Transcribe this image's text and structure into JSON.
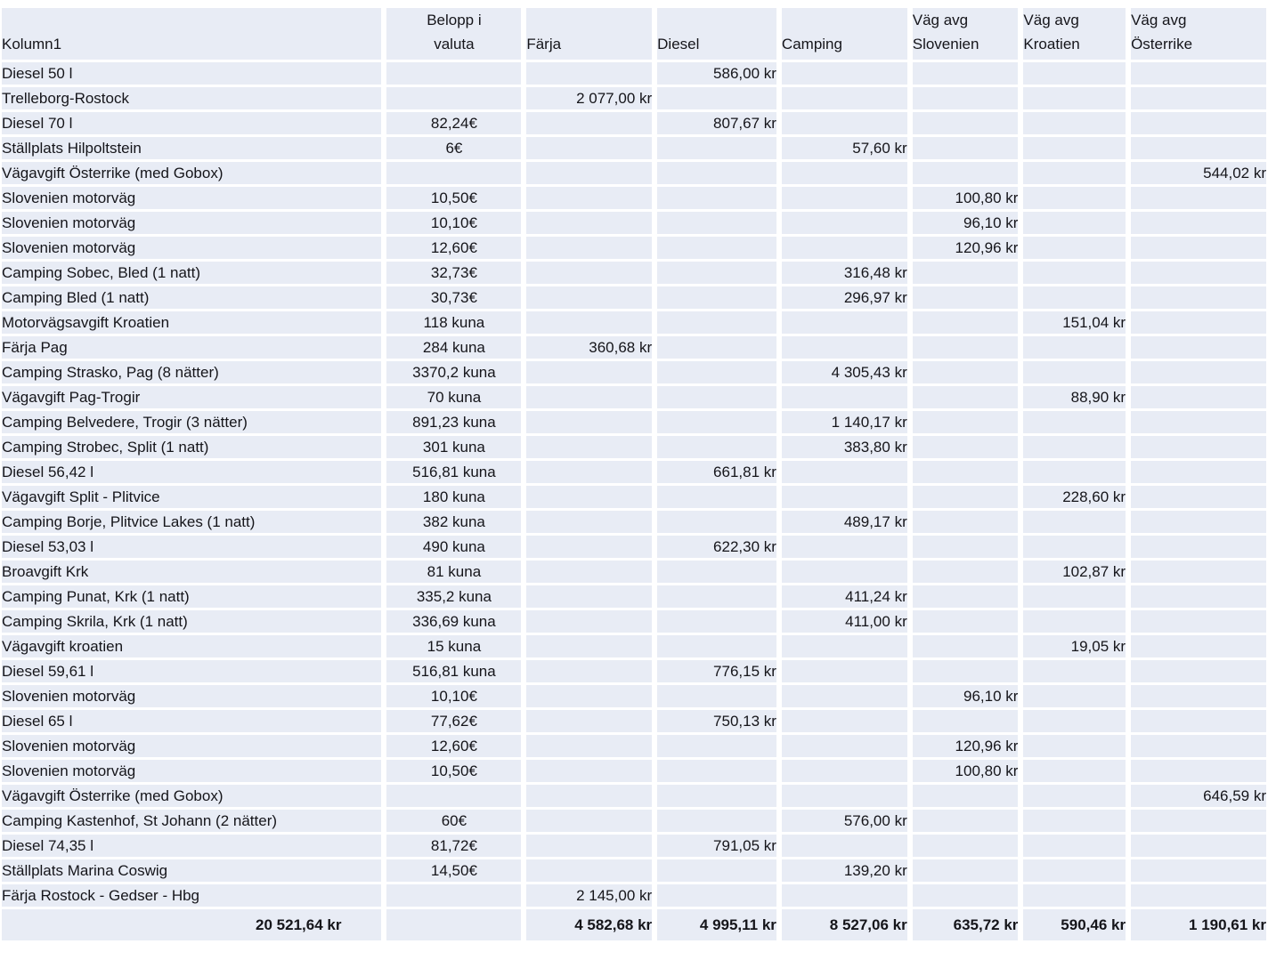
{
  "colors": {
    "cell_fill": "#e8ecf5",
    "gridline": "#ffffff",
    "text": "#15151a"
  },
  "table": {
    "columns": [
      {
        "key": "name",
        "label": "Kolumn1",
        "type": "label"
      },
      {
        "key": "valuta",
        "label": "Belopp i\nvaluta",
        "type": "center"
      },
      {
        "key": "farja",
        "label": "Färja",
        "type": "num"
      },
      {
        "key": "diesel",
        "label": "Diesel",
        "type": "num"
      },
      {
        "key": "camping",
        "label": "Camping",
        "type": "num"
      },
      {
        "key": "slovenien",
        "label": "Väg avg\nSlovenien",
        "type": "num"
      },
      {
        "key": "kroatien",
        "label": "Väg avg\nKroatien",
        "type": "num"
      },
      {
        "key": "osterrike",
        "label": "Väg avg\nÖsterrike",
        "type": "num"
      }
    ],
    "rows": [
      {
        "name": "Diesel 50 l",
        "diesel": "586,00 kr"
      },
      {
        "name": "Trelleborg-Rostock",
        "farja": "2 077,00 kr"
      },
      {
        "name": "Diesel 70 l",
        "valuta": "82,24€",
        "diesel": "807,67 kr"
      },
      {
        "name": "Ställplats Hilpoltstein",
        "valuta": "6€",
        "camping": "57,60 kr"
      },
      {
        "name": "Vägavgift Österrike (med Gobox)",
        "osterrike": "544,02 kr"
      },
      {
        "name": "Slovenien motorväg",
        "valuta": "10,50€",
        "slovenien": "100,80 kr"
      },
      {
        "name": "Slovenien motorväg",
        "valuta": "10,10€",
        "slovenien": "96,10 kr"
      },
      {
        "name": "Slovenien motorväg",
        "valuta": "12,60€",
        "slovenien": "120,96 kr"
      },
      {
        "name": "Camping Sobec, Bled (1 natt)",
        "valuta": "32,73€",
        "camping": "316,48 kr"
      },
      {
        "name": "Camping Bled (1 natt)",
        "valuta": "30,73€",
        "camping": "296,97 kr"
      },
      {
        "name": "Motorvägsavgift Kroatien",
        "valuta": "118 kuna",
        "kroatien": "151,04 kr"
      },
      {
        "name": "Färja Pag",
        "valuta": "284 kuna",
        "farja": "360,68 kr"
      },
      {
        "name": "Camping Strasko, Pag (8 nätter)",
        "valuta": "3370,2 kuna",
        "camping": "4 305,43 kr"
      },
      {
        "name": "Vägavgift Pag-Trogir",
        "valuta": "70 kuna",
        "kroatien": "88,90 kr"
      },
      {
        "name": "Camping Belvedere, Trogir (3 nätter)",
        "valuta": "891,23 kuna",
        "camping": "1 140,17 kr"
      },
      {
        "name": "Camping Strobec, Split (1 natt)",
        "valuta": "301 kuna",
        "camping": "383,80 kr"
      },
      {
        "name": "Diesel 56,42 l",
        "valuta": "516,81 kuna",
        "diesel": "661,81 kr"
      },
      {
        "name": "Vägavgift Split - Plitvice",
        "valuta": "180 kuna",
        "kroatien": "228,60 kr"
      },
      {
        "name": "Camping Borje, Plitvice Lakes (1 natt)",
        "valuta": "382 kuna",
        "camping": "489,17 kr"
      },
      {
        "name": "Diesel 53,03 l",
        "valuta": "490 kuna",
        "diesel": "622,30 kr"
      },
      {
        "name": "Broavgift Krk",
        "valuta": "81 kuna",
        "kroatien": "102,87 kr"
      },
      {
        "name": "Camping Punat, Krk (1 natt)",
        "valuta": "335,2 kuna",
        "camping": "411,24 kr"
      },
      {
        "name": "Camping Skrila, Krk (1 natt)",
        "valuta": "336,69 kuna",
        "camping": "411,00 kr"
      },
      {
        "name": "Vägavgift kroatien",
        "valuta": "15 kuna",
        "kroatien": "19,05 kr"
      },
      {
        "name": "Diesel 59,61 l",
        "valuta": "516,81 kuna",
        "diesel": "776,15 kr"
      },
      {
        "name": "Slovenien motorväg",
        "valuta": "10,10€",
        "slovenien": "96,10 kr"
      },
      {
        "name": "Diesel 65 l",
        "valuta": "77,62€",
        "diesel": "750,13 kr"
      },
      {
        "name": "Slovenien motorväg",
        "valuta": "12,60€",
        "slovenien": "120,96 kr"
      },
      {
        "name": "Slovenien motorväg",
        "valuta": "10,50€",
        "slovenien": "100,80 kr"
      },
      {
        "name": "Vägavgift Österrike (med Gobox)",
        "osterrike": "646,59 kr"
      },
      {
        "name": "Camping Kastenhof, St Johann (2 nätter)",
        "valuta": "60€",
        "camping": "576,00 kr"
      },
      {
        "name": "Diesel 74,35 l",
        "valuta": "81,72€",
        "diesel": "791,05 kr"
      },
      {
        "name": "Ställplats  Marina Coswig",
        "valuta": "14,50€",
        "camping": "139,20 kr"
      },
      {
        "name": "Färja Rostock - Gedser - Hbg",
        "farja": "2 145,00 kr"
      }
    ],
    "total_row": {
      "name": "20 521,64 kr",
      "valuta": "",
      "farja": "4 582,68 kr",
      "diesel": "4 995,11 kr",
      "camping": "8 527,06 kr",
      "slovenien": "635,72 kr",
      "kroatien": "590,46 kr",
      "osterrike": "1 190,61 kr"
    }
  }
}
